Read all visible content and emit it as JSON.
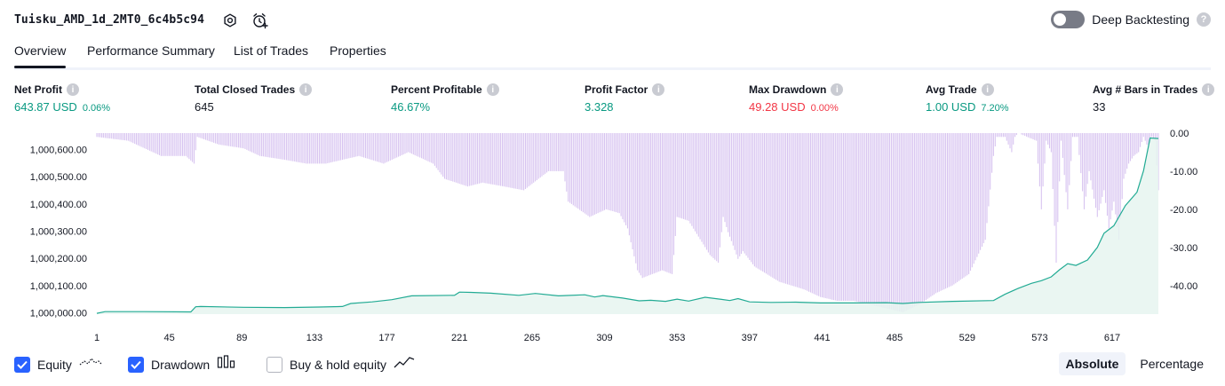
{
  "header": {
    "strategy_name": "Tuisku_AMD_1d_2MT0_6c4b5c94",
    "settings_icon": "gear-icon",
    "add_alert_icon": "alarm-clock-plus-icon",
    "deep_backtesting_label": "Deep Backtesting",
    "deep_backtesting_on": false,
    "help_icon": "question-icon"
  },
  "tabs": [
    {
      "label": "Overview",
      "active": true
    },
    {
      "label": "Performance Summary",
      "active": false
    },
    {
      "label": "List of Trades",
      "active": false
    },
    {
      "label": "Properties",
      "active": false
    }
  ],
  "metrics": [
    {
      "label": "Net Profit",
      "value": "643.87 USD",
      "pct": "0.06%",
      "color": "green"
    },
    {
      "label": "Total Closed Trades",
      "value": "645",
      "pct": "",
      "color": "dark"
    },
    {
      "label": "Percent Profitable",
      "value": "46.67%",
      "pct": "",
      "color": "green"
    },
    {
      "label": "Profit Factor",
      "value": "3.328",
      "pct": "",
      "color": "green"
    },
    {
      "label": "Max Drawdown",
      "value": "49.28 USD",
      "pct": "0.00%",
      "color": "red"
    },
    {
      "label": "Avg Trade",
      "value": "1.00 USD",
      "pct": "7.20%",
      "color": "green"
    },
    {
      "label": "Avg # Bars in Trades",
      "value": "33",
      "pct": "",
      "color": "dark"
    }
  ],
  "colors": {
    "equity_line": "#22ab94",
    "equity_fill": "#e6f4f0",
    "drawdown_bar": "#d7c3f0",
    "checkbox": "#2962ff",
    "green": "#089981",
    "red": "#f23645"
  },
  "legend": {
    "equity_label": "Equity",
    "equity_checked": true,
    "equity_icon": "equity-line-icon",
    "drawdown_label": "Drawdown",
    "drawdown_checked": true,
    "drawdown_icon": "drawdown-bars-icon",
    "buyhold_label": "Buy & hold equity",
    "buyhold_checked": false,
    "buyhold_icon": "buyhold-line-icon"
  },
  "modes": [
    {
      "label": "Absolute",
      "active": true
    },
    {
      "label": "Percentage",
      "active": false
    }
  ],
  "chart_data": {
    "type": "area",
    "x_ticks": [
      "1",
      "45",
      "89",
      "133",
      "177",
      "221",
      "265",
      "309",
      "353",
      "397",
      "441",
      "485",
      "529",
      "573",
      "617"
    ],
    "xlim": [
      1,
      645
    ],
    "equity_ticks": [
      "1,000,000.00",
      "1,000,100.00",
      "1,000,200.00",
      "1,000,300.00",
      "1,000,400.00",
      "1,000,500.00",
      "1,000,600.00"
    ],
    "equity_ylim": [
      999995,
      1000660
    ],
    "drawdown_ticks": [
      "0.00",
      "-10.00",
      "-20.00",
      "-30.00",
      "-40.00"
    ],
    "drawdown_ylim": [
      -47.5,
      0
    ],
    "series": [
      {
        "name": "Equity",
        "x": [
          1,
          6,
          30,
          58,
          61,
          64,
          90,
          115,
          136,
          150,
          155,
          168,
          180,
          192,
          218,
          221,
          228,
          240,
          257,
          267,
          281,
          297,
          303,
          308,
          320,
          330,
          337,
          346,
          353,
          360,
          370,
          380,
          385,
          390,
          397,
          410,
          425,
          440,
          460,
          480,
          490,
          500,
          520,
          545,
          552,
          560,
          568,
          574,
          580,
          585,
          590,
          595,
          602,
          608,
          612,
          618,
          625,
          632,
          636,
          640,
          645
        ],
        "y": [
          999998,
          1000004,
          1000004,
          1000003,
          1000022,
          1000023,
          1000020,
          1000019,
          1000021,
          1000023,
          1000034,
          1000040,
          1000048,
          1000062,
          1000064,
          1000076,
          1000075,
          1000072,
          1000064,
          1000071,
          1000062,
          1000066,
          1000058,
          1000063,
          1000054,
          1000044,
          1000046,
          1000042,
          1000050,
          1000043,
          1000057,
          1000049,
          1000045,
          1000052,
          1000040,
          1000038,
          1000039,
          1000036,
          1000036,
          1000037,
          1000034,
          1000038,
          1000042,
          1000045,
          1000068,
          1000090,
          1000108,
          1000118,
          1000132,
          1000158,
          1000180,
          1000174,
          1000194,
          1000240,
          1000292,
          1000320,
          1000394,
          1000443,
          1000522,
          1000642,
          1000640
        ]
      },
      {
        "name": "Drawdown",
        "x": [
          1,
          20,
          40,
          55,
          60,
          62,
          75,
          90,
          100,
          115,
          128,
          140,
          160,
          175,
          190,
          205,
          212,
          226,
          235,
          248,
          260,
          275,
          284,
          287,
          300,
          310,
          318,
          323,
          329,
          332,
          338,
          344,
          350,
          353,
          360,
          373,
          378,
          381,
          384,
          390,
          393,
          400,
          415,
          430,
          440,
          450,
          460,
          470,
          480,
          490,
          500,
          510,
          520,
          530,
          540,
          545,
          547,
          552,
          556,
          558,
          560,
          571,
          574,
          577,
          580,
          583,
          586,
          590,
          593,
          596,
          600,
          603,
          608,
          612,
          615,
          618,
          621,
          624,
          627,
          630,
          633,
          636,
          639,
          641,
          643,
          645
        ],
        "y": [
          -1,
          -2,
          -6,
          -6,
          -8,
          -1,
          -3,
          -4,
          -6,
          -7,
          -8,
          -8,
          -6,
          -8,
          -5,
          -8,
          -12,
          -14,
          -13,
          -14,
          -15,
          -10,
          -10,
          -18,
          -22,
          -20,
          -21,
          -25,
          -36,
          -38,
          -37,
          -36,
          -37,
          -22,
          -23,
          -32,
          -34,
          -22,
          -26,
          -33,
          -31,
          -35,
          -39,
          -41,
          -43,
          -44,
          -44,
          -45,
          -46,
          -47,
          -45,
          -42,
          -40,
          -37,
          -28,
          -6,
          -1,
          -1,
          -5,
          -1,
          0,
          -2,
          -20,
          -2,
          -5,
          -34,
          -2,
          -20,
          -1,
          -1,
          -20,
          -10,
          -22,
          -15,
          -25,
          -18,
          -28,
          -12,
          -8,
          -6,
          -5,
          -1,
          -4,
          -1,
          -2,
          -15
        ]
      }
    ]
  }
}
